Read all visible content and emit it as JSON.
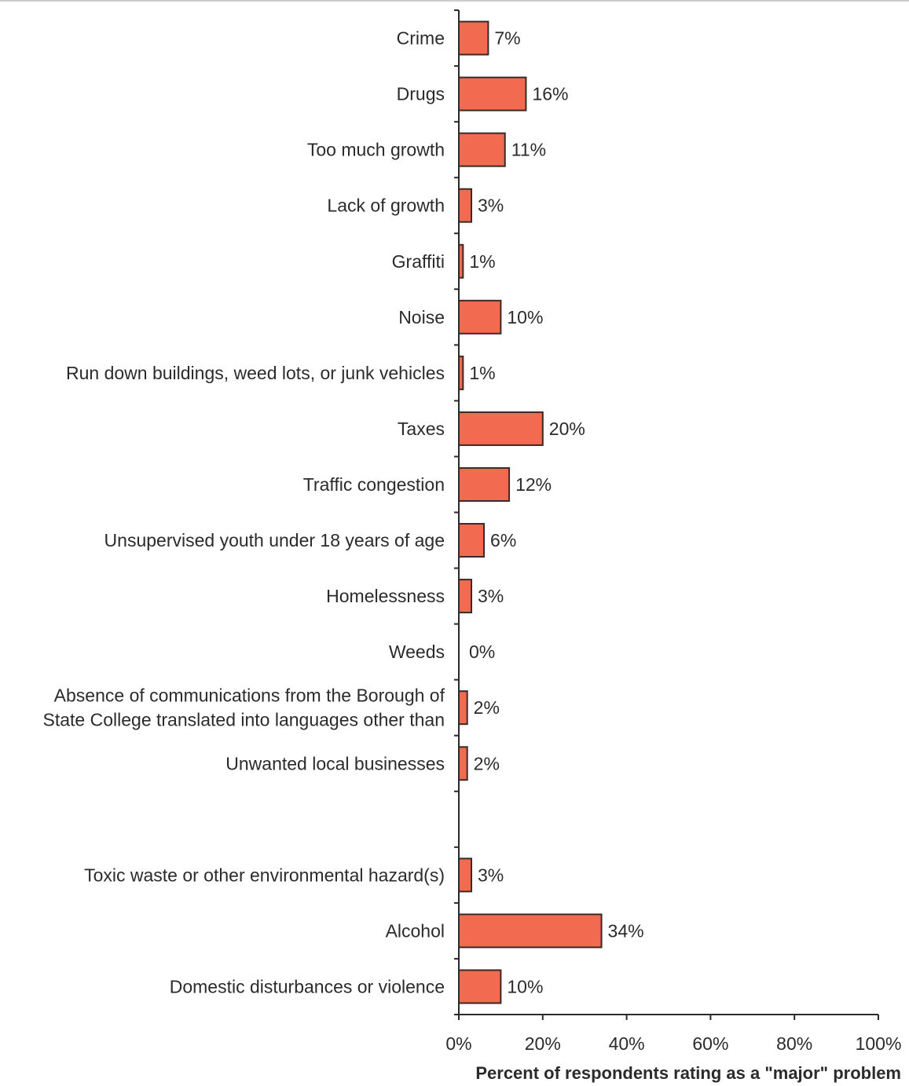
{
  "chart_data": {
    "type": "bar",
    "orientation": "horizontal",
    "bar_color": "#f26a4f",
    "bar_stroke": "#3a2a26",
    "xlabel": "Percent of respondents rating as a \"major\" problem",
    "xlim": [
      0,
      100
    ],
    "x_ticks": [
      "0%",
      "20%",
      "40%",
      "60%",
      "80%",
      "100%"
    ],
    "grid": false,
    "categories": [
      {
        "label": [
          "Crime"
        ],
        "value": 7,
        "value_label": "7%"
      },
      {
        "label": [
          "Drugs"
        ],
        "value": 16,
        "value_label": "16%"
      },
      {
        "label": [
          "Too much growth"
        ],
        "value": 11,
        "value_label": "11%"
      },
      {
        "label": [
          "Lack of growth"
        ],
        "value": 3,
        "value_label": "3%"
      },
      {
        "label": [
          "Graffiti"
        ],
        "value": 1,
        "value_label": "1%"
      },
      {
        "label": [
          "Noise"
        ],
        "value": 10,
        "value_label": "10%"
      },
      {
        "label": [
          "Run down buildings, weed lots, or junk vehicles"
        ],
        "value": 1,
        "value_label": "1%"
      },
      {
        "label": [
          "Taxes"
        ],
        "value": 20,
        "value_label": "20%"
      },
      {
        "label": [
          "Traffic congestion"
        ],
        "value": 12,
        "value_label": "12%"
      },
      {
        "label": [
          "Unsupervised youth under 18 years of age"
        ],
        "value": 6,
        "value_label": "6%"
      },
      {
        "label": [
          "Homelessness"
        ],
        "value": 3,
        "value_label": "3%"
      },
      {
        "label": [
          "Weeds"
        ],
        "value": 0,
        "value_label": "0%"
      },
      {
        "label": [
          "Absence of communications from the Borough of",
          "State College translated into languages other than"
        ],
        "value": 2,
        "value_label": "2%"
      },
      {
        "label": [
          "Unwanted local businesses"
        ],
        "value": 2,
        "value_label": "2%"
      },
      {
        "label": [
          ""
        ],
        "value": null,
        "value_label": ""
      },
      {
        "label": [
          "Toxic waste or other environmental hazard(s)"
        ],
        "value": 3,
        "value_label": "3%"
      },
      {
        "label": [
          "Alcohol"
        ],
        "value": 34,
        "value_label": "34%"
      },
      {
        "label": [
          "Domestic disturbances or violence"
        ],
        "value": 10,
        "value_label": "10%"
      }
    ]
  }
}
